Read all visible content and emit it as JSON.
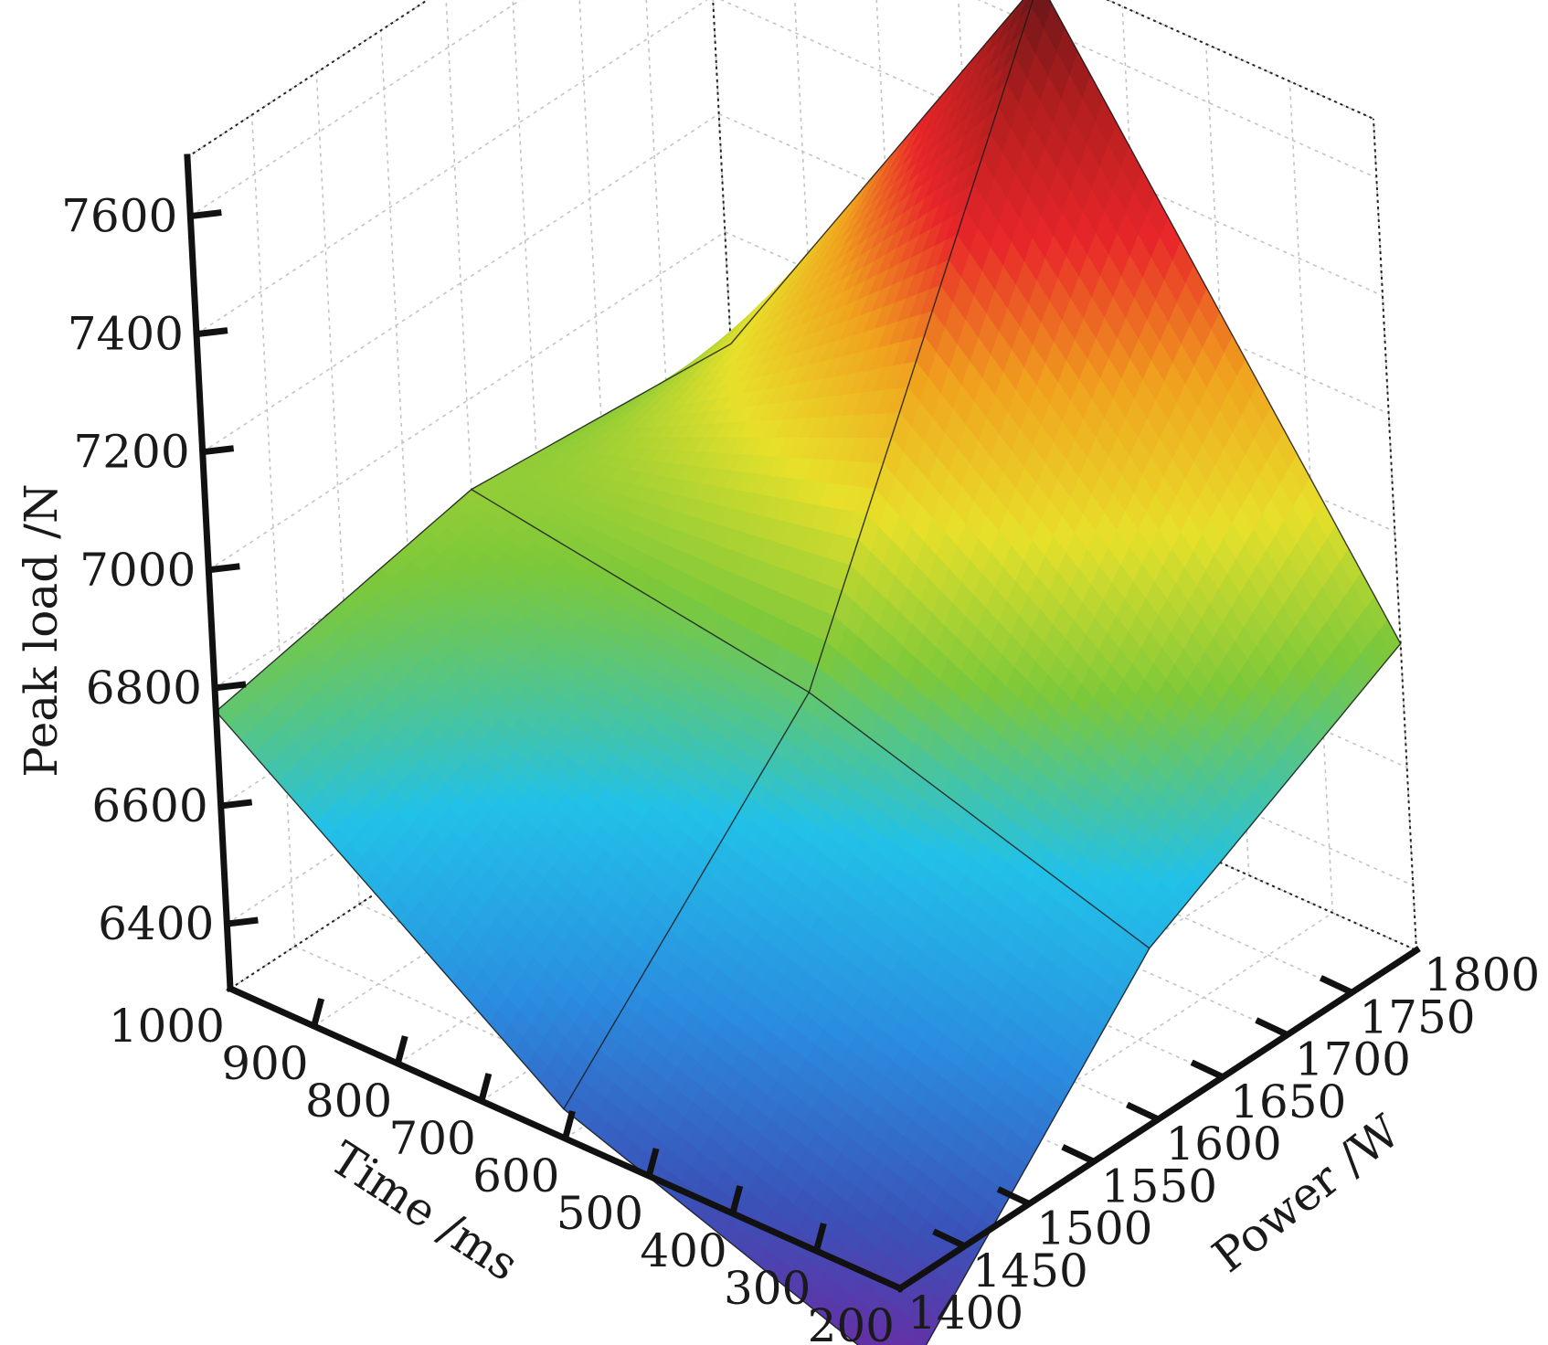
{
  "chart_data": {
    "type": "surface3d",
    "title": "",
    "zlabel": "Peak load /N",
    "xlabel": "Time /ms",
    "ylabel": "Power /W",
    "z_ticks": [
      "6400",
      "6600",
      "6800",
      "7000",
      "7200",
      "7400",
      "7600"
    ],
    "x_ticks": [
      "1000",
      "900",
      "800",
      "700",
      "600",
      "500",
      "400",
      "300",
      "200"
    ],
    "y_ticks": [
      "1400",
      "1450",
      "1500",
      "1550",
      "1600",
      "1650",
      "1700",
      "1750",
      "1800"
    ],
    "zlim": [
      6290,
      7700
    ],
    "xlim": [
      1000,
      200
    ],
    "ylim": [
      1400,
      1800
    ],
    "grid": true,
    "colormap": [
      "#7a1f9c",
      "#3a52b8",
      "#2a8ee0",
      "#22c1e8",
      "#7cc83a",
      "#e8e02a",
      "#f0a21e",
      "#e8262a",
      "#b01e1e",
      "#5a1418"
    ],
    "surface": {
      "time": [
        1000,
        600,
        200
      ],
      "power": [
        1400,
        1600,
        1800
      ],
      "peak_load": [
        [
          6760,
          6850,
          6810
        ],
        [
          6340,
          6760,
          7680
        ],
        [
          6130,
          6580,
          6810
        ]
      ]
    }
  }
}
